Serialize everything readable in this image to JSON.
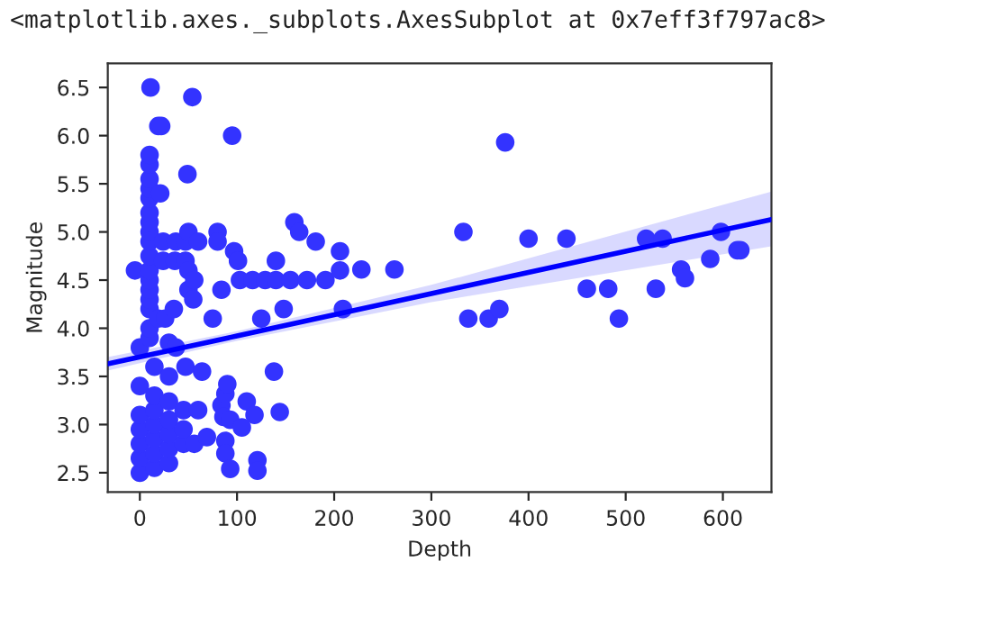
{
  "chart_data": {
    "type": "scatter",
    "xlabel": "Depth",
    "ylabel": "Magnitude",
    "annotations": [
      "<matplotlib.axes._subplots.AxesSubplot at 0x7eff3f797ac8>"
    ],
    "xlim": [
      -33,
      650
    ],
    "ylim": [
      2.3,
      6.75
    ],
    "xticks": [
      0,
      100,
      200,
      300,
      400,
      500,
      600
    ],
    "yticks": [
      2.5,
      {
        "value": 3,
        "label": "3.0"
      },
      3.5,
      {
        "value": 4,
        "label": "4.0"
      },
      4.5,
      {
        "value": 5,
        "label": "5.0"
      },
      5.5,
      {
        "value": 6,
        "label": "6.0"
      },
      6.5
    ],
    "grid": false,
    "series": [
      {
        "color": "#3333ff",
        "marker": "circle",
        "x": [
          0,
          0,
          0,
          0,
          0,
          0,
          0,
          -5,
          15,
          15,
          15,
          15,
          15,
          15,
          15,
          10,
          10,
          10,
          10,
          10,
          10,
          10,
          10,
          10,
          10,
          10,
          10,
          10,
          10,
          10,
          10,
          10,
          11,
          19,
          21,
          19,
          22,
          26,
          24,
          24,
          30,
          30,
          30,
          30,
          30,
          30,
          30,
          35,
          36,
          37,
          37,
          45,
          45,
          45,
          47,
          47,
          47,
          50,
          50,
          49,
          50,
          54,
          56,
          56,
          55,
          60,
          60,
          64,
          69,
          75,
          80,
          80,
          84,
          84,
          86,
          88,
          88,
          88,
          90,
          93,
          93,
          95,
          97,
          101,
          103,
          105,
          110,
          116,
          118,
          121,
          121,
          125,
          129,
          138,
          140,
          140,
          144,
          148,
          155,
          159,
          164,
          172,
          181,
          191,
          206,
          206,
          209,
          228,
          262,
          333,
          338,
          359,
          370,
          376,
          400,
          439,
          460,
          482,
          493,
          521,
          531,
          538,
          557,
          561,
          587,
          598,
          615,
          618
        ],
        "values": [
          2.5,
          2.65,
          2.8,
          2.95,
          3.1,
          3.4,
          3.8,
          4.6,
          2.55,
          2.7,
          2.85,
          3.0,
          3.15,
          3.3,
          3.6,
          3.9,
          4.0,
          4.2,
          4.3,
          4.4,
          4.5,
          4.6,
          4.75,
          4.9,
          5.0,
          5.1,
          5.2,
          5.35,
          5.45,
          5.55,
          5.7,
          5.8,
          6.5,
          4.1,
          5.4,
          6.1,
          6.1,
          4.1,
          4.7,
          4.9,
          2.6,
          2.75,
          2.9,
          3.05,
          3.24,
          3.5,
          3.85,
          4.2,
          4.7,
          3.8,
          4.9,
          2.8,
          2.95,
          3.15,
          3.6,
          4.7,
          4.9,
          4.4,
          4.6,
          5.6,
          5.0,
          6.4,
          2.8,
          4.5,
          4.3,
          3.15,
          4.9,
          3.55,
          2.87,
          4.1,
          5.0,
          4.9,
          4.4,
          3.2,
          3.08,
          3.32,
          2.83,
          2.7,
          3.42,
          3.05,
          2.54,
          6.0,
          4.8,
          4.7,
          4.5,
          2.97,
          3.24,
          4.5,
          3.1,
          2.63,
          2.52,
          4.1,
          4.5,
          3.55,
          4.5,
          4.7,
          3.13,
          4.2,
          4.5,
          5.1,
          5.0,
          4.5,
          4.9,
          4.5,
          4.8,
          4.6,
          4.2,
          4.61,
          4.61,
          5.0,
          4.1,
          4.1,
          4.2,
          5.93,
          4.93,
          4.93,
          4.41,
          4.41,
          4.1,
          4.93,
          4.41,
          4.93,
          4.61,
          4.52,
          4.72,
          5.0,
          4.81,
          4.81
        ]
      },
      {
        "type": "line",
        "color": "#0000ff",
        "x": [
          -33,
          100,
          300,
          650
        ],
        "values": [
          3.63,
          3.92,
          4.36,
          5.13
        ],
        "lower": [
          3.56,
          3.87,
          4.27,
          4.85
        ],
        "upper": [
          3.7,
          3.97,
          4.45,
          5.42
        ]
      }
    ]
  }
}
